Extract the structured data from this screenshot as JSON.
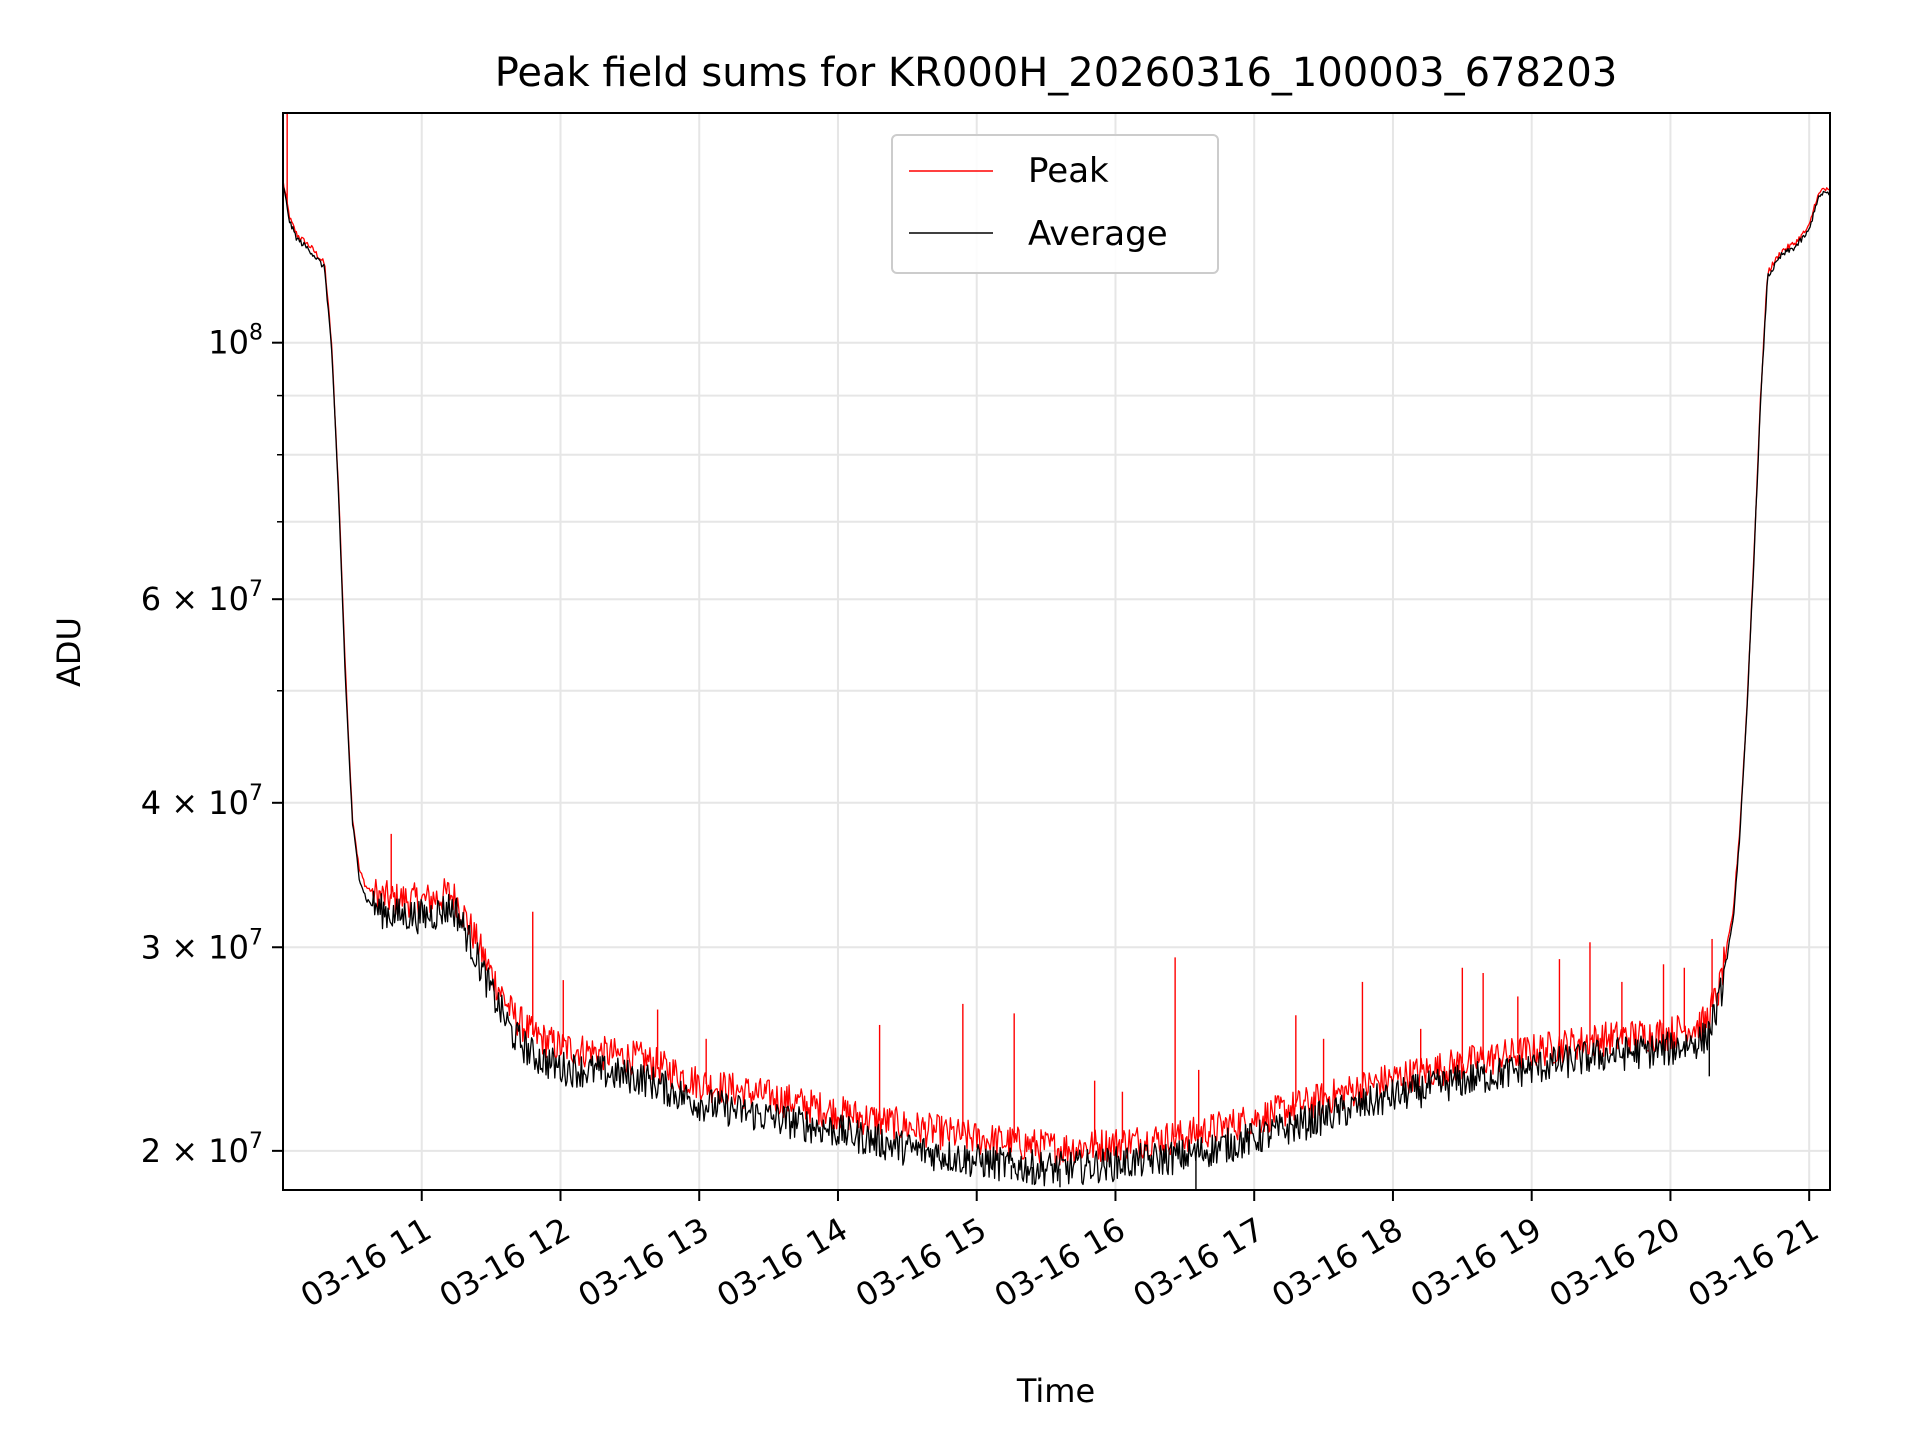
{
  "chart_data": {
    "type": "line",
    "title": "Peak field sums for KR000H_20260316_100003_678203",
    "xlabel": "Time",
    "ylabel": "ADU",
    "yscale": "log",
    "xlim_hours": [
      10.0,
      21.15
    ],
    "ylim": [
      18500000,
      158000000
    ],
    "grid": true,
    "legend_position": "upper center",
    "x_ticks": [
      {
        "value": 11,
        "label": "03-16 11"
      },
      {
        "value": 12,
        "label": "03-16 12"
      },
      {
        "value": 13,
        "label": "03-16 13"
      },
      {
        "value": 14,
        "label": "03-16 14"
      },
      {
        "value": 15,
        "label": "03-16 15"
      },
      {
        "value": 16,
        "label": "03-16 16"
      },
      {
        "value": 17,
        "label": "03-16 17"
      },
      {
        "value": 18,
        "label": "03-16 18"
      },
      {
        "value": 19,
        "label": "03-16 19"
      },
      {
        "value": 20,
        "label": "03-16 20"
      },
      {
        "value": 21,
        "label": "03-16 21"
      }
    ],
    "y_major_ticks": [
      {
        "value": 100000000,
        "mantissa": "",
        "base": "10",
        "exponent": "8"
      },
      {
        "value": 60000000,
        "mantissa": "6 × ",
        "base": "10",
        "exponent": "7"
      },
      {
        "value": 40000000,
        "mantissa": "4 × ",
        "base": "10",
        "exponent": "7"
      },
      {
        "value": 30000000,
        "mantissa": "3 × ",
        "base": "10",
        "exponent": "7"
      },
      {
        "value": 20000000,
        "mantissa": "2 × ",
        "base": "10",
        "exponent": "7"
      }
    ],
    "y_minor_gridlines": [
      50000000,
      70000000,
      80000000,
      90000000
    ],
    "series": [
      {
        "name": "Peak",
        "color": "#ff0000",
        "x": [
          10.0,
          10.05,
          10.1,
          10.2,
          10.3,
          10.35,
          10.4,
          10.45,
          10.5,
          10.55,
          10.6,
          10.65,
          10.7,
          10.8,
          10.9,
          11.0,
          11.1,
          11.2,
          11.25,
          11.35,
          11.5,
          11.65,
          11.8,
          12.0,
          12.3,
          12.6,
          13.0,
          13.5,
          14.0,
          14.5,
          15.0,
          15.3,
          15.6,
          16.0,
          16.5,
          17.0,
          17.5,
          18.0,
          18.5,
          19.0,
          19.5,
          20.0,
          20.25,
          20.35,
          20.45,
          20.5,
          20.55,
          20.6,
          20.65,
          20.7,
          20.8,
          20.9,
          21.0,
          21.05,
          21.1,
          21.15
        ],
        "y": [
          138000000,
          128000000,
          124000000,
          121000000,
          117000000,
          100000000,
          75000000,
          52000000,
          39000000,
          35000000,
          33800000,
          33500000,
          33200000,
          33000000,
          33000000,
          32900000,
          33100000,
          33400000,
          33000000,
          31200000,
          28500000,
          26300000,
          25200000,
          24600000,
          24300000,
          24000000,
          22900000,
          22300000,
          21600000,
          21000000,
          20500000,
          20300000,
          20100000,
          20300000,
          20600000,
          21300000,
          22200000,
          23100000,
          23800000,
          24400000,
          25000000,
          25300000,
          25800000,
          27500000,
          32000000,
          38000000,
          48000000,
          65000000,
          90000000,
          115000000,
          120000000,
          122000000,
          126000000,
          133000000,
          136000000,
          135000000
        ],
        "spikes": [
          {
            "x": 10.03,
            "y": 158000000
          },
          {
            "x": 10.78,
            "y": 37600000
          },
          {
            "x": 11.8,
            "y": 32200000
          },
          {
            "x": 12.02,
            "y": 28100000
          },
          {
            "x": 12.7,
            "y": 26500000
          },
          {
            "x": 13.05,
            "y": 25000000
          },
          {
            "x": 14.3,
            "y": 25700000
          },
          {
            "x": 14.9,
            "y": 26800000
          },
          {
            "x": 15.27,
            "y": 26300000
          },
          {
            "x": 15.85,
            "y": 23000000
          },
          {
            "x": 16.05,
            "y": 22500000
          },
          {
            "x": 16.43,
            "y": 29400000
          },
          {
            "x": 16.6,
            "y": 23500000
          },
          {
            "x": 17.3,
            "y": 26200000
          },
          {
            "x": 17.5,
            "y": 25000000
          },
          {
            "x": 17.78,
            "y": 28000000
          },
          {
            "x": 18.2,
            "y": 25500000
          },
          {
            "x": 18.5,
            "y": 28800000
          },
          {
            "x": 18.65,
            "y": 28500000
          },
          {
            "x": 18.9,
            "y": 27200000
          },
          {
            "x": 19.2,
            "y": 29300000
          },
          {
            "x": 19.42,
            "y": 30300000
          },
          {
            "x": 19.65,
            "y": 28000000
          },
          {
            "x": 19.95,
            "y": 29000000
          },
          {
            "x": 20.1,
            "y": 28800000
          },
          {
            "x": 20.3,
            "y": 30500000
          }
        ]
      },
      {
        "name": "Average",
        "color": "#000000",
        "x": [
          10.0,
          10.05,
          10.1,
          10.2,
          10.3,
          10.35,
          10.4,
          10.45,
          10.5,
          10.55,
          10.6,
          10.65,
          10.7,
          10.8,
          10.9,
          11.0,
          11.1,
          11.2,
          11.25,
          11.35,
          11.5,
          11.65,
          11.8,
          12.0,
          12.3,
          12.6,
          13.0,
          13.5,
          14.0,
          14.5,
          15.0,
          15.3,
          15.6,
          16.0,
          16.5,
          17.0,
          17.5,
          18.0,
          18.5,
          19.0,
          19.5,
          20.0,
          20.25,
          20.35,
          20.45,
          20.5,
          20.55,
          20.6,
          20.65,
          20.7,
          20.8,
          20.9,
          21.0,
          21.05,
          21.1,
          21.15
        ],
        "y": [
          137000000,
          127000000,
          123000000,
          120000000,
          116000000,
          99000000,
          74000000,
          51000000,
          38500000,
          34500000,
          33000000,
          32600000,
          32300000,
          32000000,
          32000000,
          31900000,
          32100000,
          32500000,
          32200000,
          30300000,
          27500000,
          25300000,
          24200000,
          23600000,
          23400000,
          23100000,
          22000000,
          21400000,
          20800000,
          20100000,
          19600000,
          19400000,
          19300000,
          19500000,
          19800000,
          20500000,
          21400000,
          22300000,
          23000000,
          23600000,
          24200000,
          24500000,
          25000000,
          26800000,
          31500000,
          37500000,
          47500000,
          64500000,
          89000000,
          114000000,
          119000000,
          121000000,
          125000000,
          132000000,
          135000000,
          134000000
        ],
        "spikes": [
          {
            "x": 15.25,
            "y": 18900000
          },
          {
            "x": 15.4,
            "y": 18700000
          },
          {
            "x": 15.6,
            "y": 18600000
          },
          {
            "x": 16.58,
            "y": 18500000
          },
          {
            "x": 20.28,
            "y": 23200000
          }
        ]
      }
    ]
  }
}
